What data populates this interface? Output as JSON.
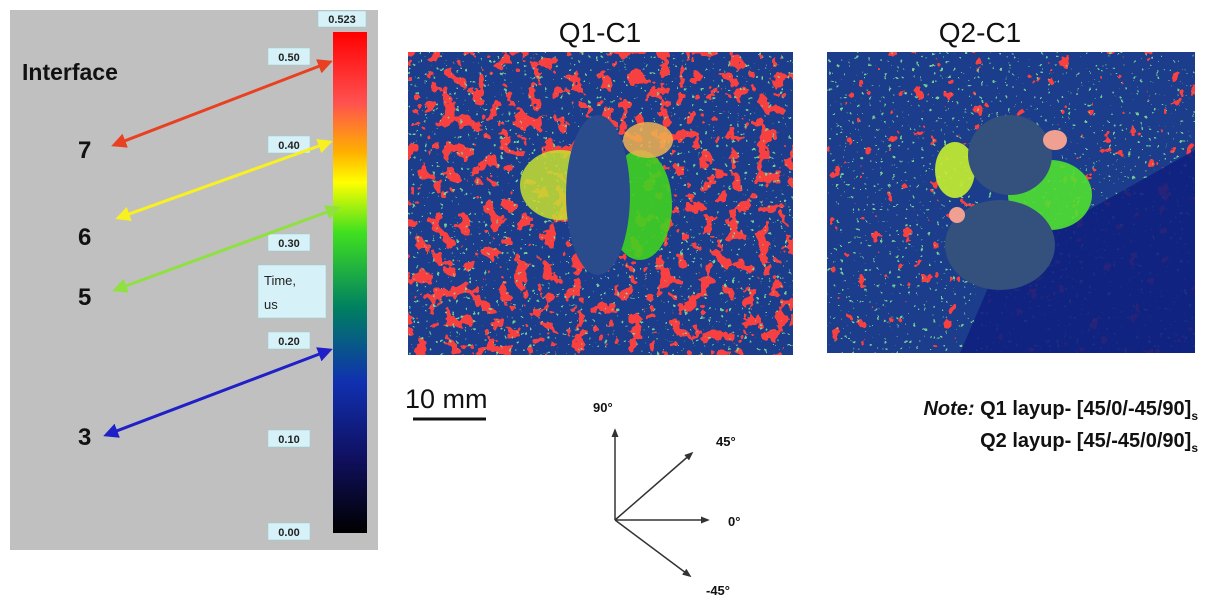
{
  "colorbar": {
    "max": "0.523",
    "ticks": [
      "0.50",
      "0.40",
      "0.30",
      "0.20",
      "0.10",
      "0.00"
    ],
    "unit": [
      "Time,",
      "us"
    ]
  },
  "interface": {
    "title": "Interface",
    "labels": [
      "7",
      "6",
      "5",
      "3"
    ]
  },
  "panels": [
    {
      "title": "Q1-C1"
    },
    {
      "title": "Q2-C1"
    }
  ],
  "scale_bar": "10 mm",
  "orientation": [
    "90°",
    "45°",
    "0°",
    "-45°"
  ],
  "note": {
    "label": "Note:",
    "lines": [
      {
        "text": "Q1 layup- [45/0/-45/90]",
        "subscript": "s"
      },
      {
        "text": "Q2 layup- [45/-45/0/90]",
        "subscript": "s"
      }
    ]
  }
}
